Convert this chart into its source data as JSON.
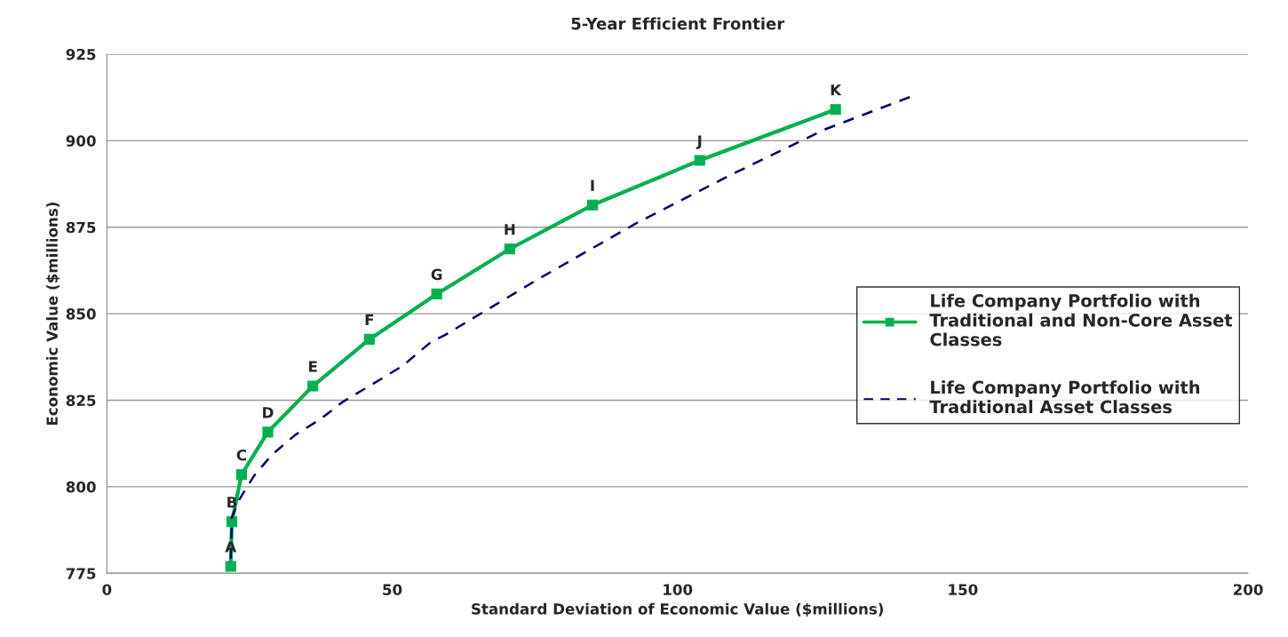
{
  "chart_data": {
    "type": "line",
    "title": "5-Year Efficient Frontier",
    "xlabel": "Standard Deviation of Economic Value ($millions)",
    "ylabel": "Economic Value ($millions)",
    "xlim": [
      0,
      200
    ],
    "xticks": [
      0,
      50,
      100,
      150,
      200
    ],
    "ylim": [
      775,
      925
    ],
    "yticks": [
      775,
      800,
      825,
      850,
      875,
      900,
      925
    ],
    "grid": "y",
    "legend": "right",
    "series": [
      {
        "name": "Life Company Portfolio with Traditional and Non-Core Asset Classes",
        "color": "#00b050",
        "marker": "square",
        "line_style": "solid",
        "x": [
          21.7,
          21.9,
          23.6,
          28.2,
          36.1,
          46.0,
          57.8,
          70.6,
          85.1,
          103.9,
          127.7
        ],
        "values": [
          777,
          789.9,
          803.5,
          815.8,
          829.1,
          842.6,
          855.7,
          868.7,
          881.4,
          894.3,
          909.0
        ]
      },
      {
        "name": "Life Company Portfolio with Traditional Asset Classes",
        "color": "#000066",
        "marker": "none",
        "line_style": "dashed",
        "x": [
          21.7,
          21.9,
          23.2,
          25.8,
          28.9,
          33.1,
          37.3,
          41.4,
          46.6,
          51.8,
          57.0,
          59.1,
          75.8,
          92.4,
          109.2,
          125.9,
          141.2
        ],
        "values": [
          779.2,
          791.2,
          796.3,
          803.2,
          809.2,
          815.1,
          819.4,
          824.6,
          829.7,
          834.9,
          842.1,
          843.7,
          860.2,
          875.8,
          890.0,
          903.3,
          912.9
        ]
      }
    ],
    "annotations": [
      {
        "text": "A",
        "x": 21.7,
        "y": 777
      },
      {
        "text": "B",
        "x": 21.9,
        "y": 789.9
      },
      {
        "text": "C",
        "x": 23.6,
        "y": 803.5
      },
      {
        "text": "D",
        "x": 28.2,
        "y": 815.8
      },
      {
        "text": "E",
        "x": 36.1,
        "y": 829.1
      },
      {
        "text": "F",
        "x": 46.0,
        "y": 842.6
      },
      {
        "text": "G",
        "x": 57.8,
        "y": 855.7
      },
      {
        "text": "H",
        "x": 70.6,
        "y": 868.7
      },
      {
        "text": "I",
        "x": 85.1,
        "y": 881.4
      },
      {
        "text": "J",
        "x": 103.9,
        "y": 894.3
      },
      {
        "text": "K",
        "x": 127.7,
        "y": 909.0
      }
    ]
  }
}
